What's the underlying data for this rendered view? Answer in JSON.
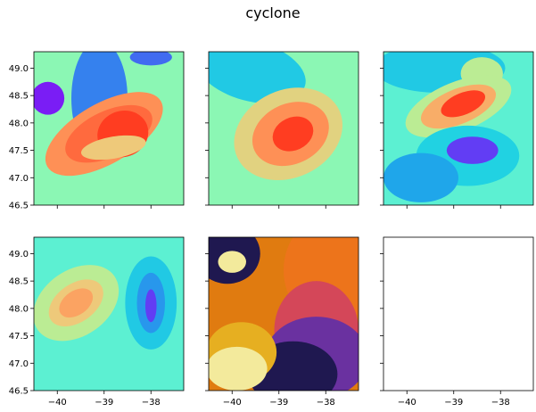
{
  "chart_data": {
    "type": "heatmap",
    "title": "cyclone",
    "layout": {
      "rows": 2,
      "cols": 3
    },
    "sharex": true,
    "sharey": true,
    "xlim": [
      -40.5,
      -37.3
    ],
    "ylim": [
      46.5,
      49.3
    ],
    "xticks": [
      -40,
      -39,
      -38
    ],
    "xtick_labels": [
      "−40",
      "−39",
      "−38"
    ],
    "yticks": [
      46.5,
      47.0,
      47.5,
      48.0,
      48.5,
      49.0
    ],
    "ytick_labels": [
      "46.5",
      "47.0",
      "47.5",
      "48.0",
      "48.5",
      "49.0"
    ],
    "panels": [
      {
        "colormap": "rainbow",
        "levels": 8,
        "background": "#8bf7b4",
        "blobs": [
          {
            "cx": -39.1,
            "cy": 48.45,
            "rx": 0.6,
            "ry": 1.05,
            "angle": 0,
            "level": 0.15
          },
          {
            "cx": -40.2,
            "cy": 48.45,
            "rx": 0.35,
            "ry": 0.3,
            "angle": 0,
            "level": 0.0
          },
          {
            "cx": -38.0,
            "cy": 49.2,
            "rx": 0.45,
            "ry": 0.15,
            "angle": 0,
            "level": 0.12
          },
          {
            "cx": -39.0,
            "cy": 47.8,
            "rx": 1.4,
            "ry": 0.55,
            "angle": -30,
            "level": 0.82
          },
          {
            "cx": -38.9,
            "cy": 47.8,
            "rx": 1.0,
            "ry": 0.42,
            "angle": -25,
            "level": 0.9
          },
          {
            "cx": -38.6,
            "cy": 47.8,
            "rx": 0.55,
            "ry": 0.42,
            "angle": -20,
            "level": 0.97
          },
          {
            "cx": -38.8,
            "cy": 47.55,
            "rx": 0.7,
            "ry": 0.2,
            "angle": -10,
            "level": 0.7
          }
        ]
      },
      {
        "colormap": "rainbow",
        "levels": 8,
        "background": "#8bf7b4",
        "blobs": [
          {
            "cx": -39.6,
            "cy": 48.95,
            "rx": 1.2,
            "ry": 0.55,
            "angle": 15,
            "level": 0.28
          },
          {
            "cx": -38.8,
            "cy": 47.8,
            "rx": 1.2,
            "ry": 0.8,
            "angle": -25,
            "level": 0.68
          },
          {
            "cx": -38.75,
            "cy": 47.8,
            "rx": 0.85,
            "ry": 0.55,
            "angle": -25,
            "level": 0.82
          },
          {
            "cx": -38.7,
            "cy": 47.8,
            "rx": 0.45,
            "ry": 0.3,
            "angle": -25,
            "level": 0.97
          }
        ]
      },
      {
        "colormap": "rainbow",
        "levels": 8,
        "background": "#5cf0d2",
        "blobs": [
          {
            "cx": -39.3,
            "cy": 49.0,
            "rx": 1.4,
            "ry": 0.45,
            "angle": 0,
            "level": 0.28
          },
          {
            "cx": -38.4,
            "cy": 48.9,
            "rx": 0.45,
            "ry": 0.3,
            "angle": 0,
            "level": 0.62
          },
          {
            "cx": -38.9,
            "cy": 48.3,
            "rx": 1.2,
            "ry": 0.45,
            "angle": -22,
            "level": 0.62
          },
          {
            "cx": -38.9,
            "cy": 48.3,
            "rx": 0.85,
            "ry": 0.32,
            "angle": -22,
            "level": 0.76
          },
          {
            "cx": -38.8,
            "cy": 48.35,
            "rx": 0.5,
            "ry": 0.2,
            "angle": -22,
            "level": 0.97
          },
          {
            "cx": -38.7,
            "cy": 47.4,
            "rx": 1.1,
            "ry": 0.55,
            "angle": 0,
            "level": 0.3
          },
          {
            "cx": -38.6,
            "cy": 47.5,
            "rx": 0.55,
            "ry": 0.25,
            "angle": 0,
            "level": 0.05
          },
          {
            "cx": -39.7,
            "cy": 47.0,
            "rx": 0.8,
            "ry": 0.45,
            "angle": 0,
            "level": 0.2
          }
        ]
      },
      {
        "colormap": "rainbow",
        "levels": 8,
        "background": "#5cf0d2",
        "blobs": [
          {
            "cx": -39.6,
            "cy": 48.1,
            "rx": 1.0,
            "ry": 0.6,
            "angle": -35,
            "level": 0.62
          },
          {
            "cx": -39.6,
            "cy": 48.1,
            "rx": 0.65,
            "ry": 0.35,
            "angle": -35,
            "level": 0.7
          },
          {
            "cx": -39.6,
            "cy": 48.1,
            "rx": 0.4,
            "ry": 0.22,
            "angle": -35,
            "level": 0.78
          },
          {
            "cx": -38.0,
            "cy": 48.1,
            "rx": 0.55,
            "ry": 0.85,
            "angle": 0,
            "level": 0.28
          },
          {
            "cx": -38.0,
            "cy": 48.1,
            "rx": 0.3,
            "ry": 0.55,
            "angle": 0,
            "level": 0.18
          },
          {
            "cx": -38.0,
            "cy": 48.05,
            "rx": 0.12,
            "ry": 0.3,
            "angle": 0,
            "level": 0.05
          }
        ]
      },
      {
        "colormap": "cividis",
        "levels": 8,
        "background": "#e07b10",
        "blobs": [
          {
            "cx": -37.9,
            "cy": 48.7,
            "rx": 1.0,
            "ry": 1.0,
            "angle": 0,
            "level": 0.62
          },
          {
            "cx": -38.2,
            "cy": 47.6,
            "rx": 0.9,
            "ry": 0.9,
            "angle": 0,
            "level": 0.45
          },
          {
            "cx": -38.2,
            "cy": 47.1,
            "rx": 1.1,
            "ry": 0.75,
            "angle": 0,
            "level": 0.25
          },
          {
            "cx": -38.7,
            "cy": 46.8,
            "rx": 0.95,
            "ry": 0.6,
            "angle": 0,
            "level": 0.05
          },
          {
            "cx": -40.1,
            "cy": 49.0,
            "rx": 0.7,
            "ry": 0.55,
            "angle": 0,
            "level": 0.05
          },
          {
            "cx": -40.0,
            "cy": 48.85,
            "rx": 0.3,
            "ry": 0.2,
            "angle": 0,
            "level": 0.97
          },
          {
            "cx": -39.8,
            "cy": 47.2,
            "rx": 0.75,
            "ry": 0.55,
            "angle": 0,
            "level": 0.8
          },
          {
            "cx": -39.9,
            "cy": 46.9,
            "rx": 0.65,
            "ry": 0.4,
            "angle": 0,
            "level": 0.97
          }
        ]
      },
      {
        "empty": true
      }
    ]
  }
}
